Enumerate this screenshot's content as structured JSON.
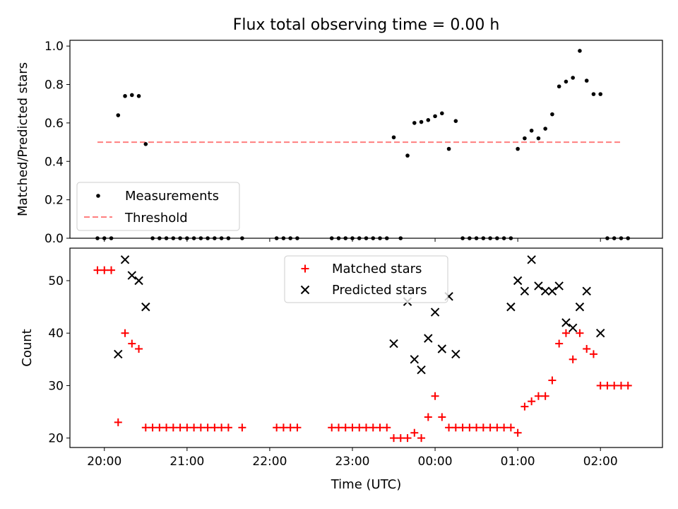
{
  "title": "Flux total observing time = 0.00 h",
  "chart_data": [
    {
      "type": "scatter",
      "ylabel": "Matched/Predicted stars",
      "ylim": [
        0.0,
        1.03
      ],
      "yticks": [
        0.0,
        0.2,
        0.4,
        0.6,
        0.8,
        1.0
      ],
      "ytick_labels": [
        "0.0",
        "0.2",
        "0.4",
        "0.6",
        "0.8",
        "1.0"
      ],
      "legend": {
        "placement": "lower-left",
        "entries": [
          "Measurements",
          "Threshold"
        ]
      },
      "threshold": {
        "value": 0.5,
        "x_start": "19:55",
        "x_end": "02:15",
        "color": "#ff7f7f"
      },
      "series": [
        {
          "name": "Measurements",
          "color": "#000000",
          "marker": "dot",
          "points": [
            [
              "19:55",
              0.0
            ],
            [
              "20:00",
              0.0
            ],
            [
              "20:05",
              0.0
            ],
            [
              "20:10",
              0.64
            ],
            [
              "20:15",
              0.74
            ],
            [
              "20:20",
              0.745
            ],
            [
              "20:25",
              0.74
            ],
            [
              "20:30",
              0.49
            ],
            [
              "20:35",
              0.0
            ],
            [
              "20:40",
              0.0
            ],
            [
              "20:45",
              0.0
            ],
            [
              "20:50",
              0.0
            ],
            [
              "20:55",
              0.0
            ],
            [
              "21:00",
              0.0
            ],
            [
              "21:05",
              0.0
            ],
            [
              "21:10",
              0.0
            ],
            [
              "21:15",
              0.0
            ],
            [
              "21:20",
              0.0
            ],
            [
              "21:25",
              0.0
            ],
            [
              "21:30",
              0.0
            ],
            [
              "21:40",
              0.0
            ],
            [
              "22:05",
              0.0
            ],
            [
              "22:10",
              0.0
            ],
            [
              "22:15",
              0.0
            ],
            [
              "22:20",
              0.0
            ],
            [
              "22:45",
              0.0
            ],
            [
              "22:50",
              0.0
            ],
            [
              "22:55",
              0.0
            ],
            [
              "23:00",
              0.0
            ],
            [
              "23:05",
              0.0
            ],
            [
              "23:10",
              0.0
            ],
            [
              "23:15",
              0.0
            ],
            [
              "23:20",
              0.0
            ],
            [
              "23:25",
              0.0
            ],
            [
              "23:30",
              0.525
            ],
            [
              "23:35",
              0.0
            ],
            [
              "23:40",
              0.43
            ],
            [
              "23:45",
              0.6
            ],
            [
              "23:50",
              0.605
            ],
            [
              "23:55",
              0.615
            ],
            [
              "00:00",
              0.635
            ],
            [
              "00:05",
              0.65
            ],
            [
              "00:10",
              0.465
            ],
            [
              "00:15",
              0.61
            ],
            [
              "00:20",
              0.0
            ],
            [
              "00:25",
              0.0
            ],
            [
              "00:30",
              0.0
            ],
            [
              "00:35",
              0.0
            ],
            [
              "00:40",
              0.0
            ],
            [
              "00:45",
              0.0
            ],
            [
              "00:50",
              0.0
            ],
            [
              "00:55",
              0.0
            ],
            [
              "01:00",
              0.465
            ],
            [
              "01:05",
              0.52
            ],
            [
              "01:10",
              0.56
            ],
            [
              "01:15",
              0.52
            ],
            [
              "01:20",
              0.57
            ],
            [
              "01:25",
              0.645
            ],
            [
              "01:30",
              0.79
            ],
            [
              "01:35",
              0.815
            ],
            [
              "01:40",
              0.835
            ],
            [
              "01:45",
              0.975
            ],
            [
              "01:50",
              0.82
            ],
            [
              "01:55",
              0.75
            ],
            [
              "02:00",
              0.75
            ],
            [
              "02:05",
              0.0
            ],
            [
              "02:10",
              0.0
            ],
            [
              "02:15",
              0.0
            ],
            [
              "02:20",
              0.0
            ]
          ]
        }
      ]
    },
    {
      "type": "scatter",
      "xlabel": "Time (UTC)",
      "ylabel": "Count",
      "ylim": [
        18.2,
        56.2
      ],
      "yticks": [
        20,
        30,
        40,
        50
      ],
      "ytick_labels": [
        "20",
        "30",
        "40",
        "50"
      ],
      "xticks": [
        "20:00",
        "21:00",
        "22:00",
        "23:00",
        "00:00",
        "01:00",
        "02:00"
      ],
      "xlim": [
        "19:35",
        "02:45"
      ],
      "legend": {
        "placement": "upper-center",
        "entries": [
          "Matched stars",
          "Predicted stars"
        ]
      },
      "series": [
        {
          "name": "Matched stars",
          "color": "#ff0000",
          "marker": "plus",
          "points": [
            [
              "19:55",
              52
            ],
            [
              "20:00",
              52
            ],
            [
              "20:05",
              52
            ],
            [
              "20:10",
              23
            ],
            [
              "20:15",
              40
            ],
            [
              "20:20",
              38
            ],
            [
              "20:25",
              37
            ],
            [
              "20:30",
              22
            ],
            [
              "20:35",
              22
            ],
            [
              "20:40",
              22
            ],
            [
              "20:45",
              22
            ],
            [
              "20:50",
              22
            ],
            [
              "20:55",
              22
            ],
            [
              "21:00",
              22
            ],
            [
              "21:05",
              22
            ],
            [
              "21:10",
              22
            ],
            [
              "21:15",
              22
            ],
            [
              "21:20",
              22
            ],
            [
              "21:25",
              22
            ],
            [
              "21:30",
              22
            ],
            [
              "21:40",
              22
            ],
            [
              "22:05",
              22
            ],
            [
              "22:10",
              22
            ],
            [
              "22:15",
              22
            ],
            [
              "22:20",
              22
            ],
            [
              "22:45",
              22
            ],
            [
              "22:50",
              22
            ],
            [
              "22:55",
              22
            ],
            [
              "23:00",
              22
            ],
            [
              "23:05",
              22
            ],
            [
              "23:10",
              22
            ],
            [
              "23:15",
              22
            ],
            [
              "23:20",
              22
            ],
            [
              "23:25",
              22
            ],
            [
              "23:30",
              20
            ],
            [
              "23:35",
              20
            ],
            [
              "23:40",
              20
            ],
            [
              "23:45",
              21
            ],
            [
              "23:50",
              20
            ],
            [
              "23:55",
              24
            ],
            [
              "00:00",
              28
            ],
            [
              "00:05",
              24
            ],
            [
              "00:10",
              22
            ],
            [
              "00:15",
              22
            ],
            [
              "00:20",
              22
            ],
            [
              "00:25",
              22
            ],
            [
              "00:30",
              22
            ],
            [
              "00:35",
              22
            ],
            [
              "00:40",
              22
            ],
            [
              "00:45",
              22
            ],
            [
              "00:50",
              22
            ],
            [
              "00:55",
              22
            ],
            [
              "01:00",
              21
            ],
            [
              "01:05",
              26
            ],
            [
              "01:10",
              27
            ],
            [
              "01:15",
              28
            ],
            [
              "01:20",
              28
            ],
            [
              "01:25",
              31
            ],
            [
              "01:30",
              38
            ],
            [
              "01:35",
              40
            ],
            [
              "01:40",
              35
            ],
            [
              "01:45",
              40
            ],
            [
              "01:50",
              37
            ],
            [
              "01:55",
              36
            ],
            [
              "02:00",
              30
            ],
            [
              "02:05",
              30
            ],
            [
              "02:10",
              30
            ],
            [
              "02:15",
              30
            ],
            [
              "02:20",
              30
            ]
          ]
        },
        {
          "name": "Predicted stars",
          "color": "#000000",
          "marker": "x",
          "points": [
            [
              "20:10",
              36
            ],
            [
              "20:15",
              54
            ],
            [
              "20:20",
              51
            ],
            [
              "20:25",
              50
            ],
            [
              "20:30",
              45
            ],
            [
              "23:30",
              38
            ],
            [
              "23:40",
              46
            ],
            [
              "23:45",
              35
            ],
            [
              "23:50",
              33
            ],
            [
              "23:55",
              39
            ],
            [
              "00:00",
              44
            ],
            [
              "00:05",
              37
            ],
            [
              "00:10",
              47
            ],
            [
              "00:15",
              36
            ],
            [
              "00:55",
              45
            ],
            [
              "01:00",
              50
            ],
            [
              "01:05",
              48
            ],
            [
              "01:10",
              54
            ],
            [
              "01:15",
              49
            ],
            [
              "01:20",
              48
            ],
            [
              "01:25",
              48
            ],
            [
              "01:30",
              49
            ],
            [
              "01:35",
              42
            ],
            [
              "01:40",
              41
            ],
            [
              "01:45",
              45
            ],
            [
              "01:50",
              48
            ],
            [
              "02:00",
              40
            ]
          ]
        }
      ]
    }
  ]
}
